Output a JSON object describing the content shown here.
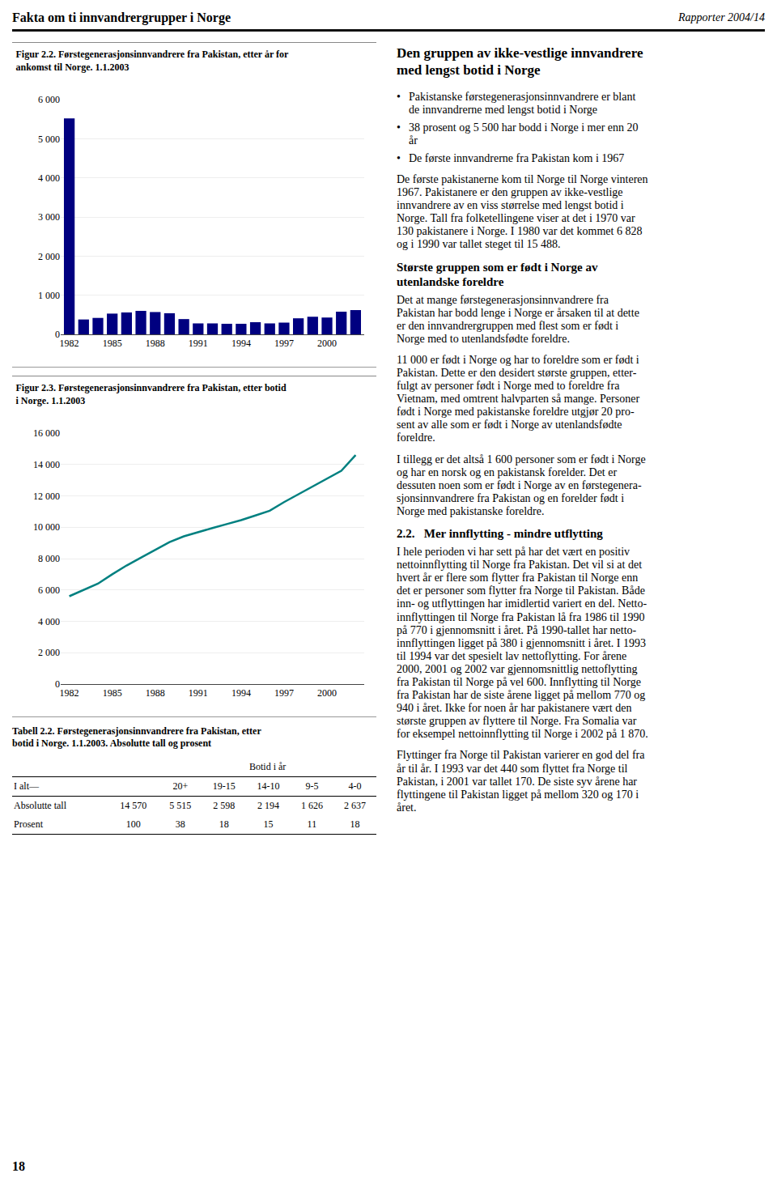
{
  "title": "Fakta om ti innvandrergrupper i Norge",
  "subtitle": "Rapporter 2004/14",
  "chart_data": [
    {
      "type": "bar",
      "title": "Figur 2.2. Førstegenerasjonsinnvandrere fra Pakistan, etter år for\nankomst til Norge. 1.1.2003",
      "x": [
        1982,
        1983,
        1984,
        1985,
        1986,
        1987,
        1988,
        1989,
        1990,
        1991,
        1992,
        1993,
        1994,
        1995,
        1996,
        1997,
        1998,
        1999,
        2000,
        2001,
        2002
      ],
      "values": [
        5520,
        380,
        420,
        530,
        560,
        600,
        570,
        540,
        390,
        280,
        280,
        270,
        270,
        310,
        280,
        300,
        410,
        450,
        430,
        580,
        620
      ],
      "color": "#000080",
      "xlim": [
        1981.4,
        2002.6
      ],
      "xticks": [
        1982,
        1985,
        1988,
        1991,
        1994,
        1997,
        2000
      ],
      "ylim": [
        0,
        6000
      ],
      "yticks": [
        0,
        {
          "value": 1000,
          "label": "1 000"
        },
        {
          "value": 2000,
          "label": "2 000"
        },
        {
          "value": 3000,
          "label": "3 000"
        },
        {
          "value": 4000,
          "label": "4 000"
        },
        {
          "value": 5000,
          "label": "5 000"
        },
        {
          "value": 6000,
          "label": "6 000"
        }
      ],
      "grid": true
    },
    {
      "type": "line",
      "title": "Figur 2.3. Førstegenerasjonsinnvandrere fra Pakistan, etter botid\ni Norge. 1.1.2003",
      "x": [
        1982,
        1983,
        1984,
        1985,
        1986,
        1987,
        1988,
        1989,
        1990,
        1991,
        1992,
        1993,
        1994,
        1995,
        1996,
        1997,
        1998,
        1999,
        2000,
        2001,
        2002
      ],
      "values": [
        5600,
        5980,
        6400,
        7000,
        7560,
        8060,
        8560,
        9050,
        9420,
        9700,
        9950,
        10200,
        10450,
        10750,
        11050,
        11600,
        12100,
        12600,
        13100,
        13600,
        14600
      ],
      "color": "#008080",
      "xlim": [
        1981.4,
        2002.6
      ],
      "xticks": [
        1982,
        1985,
        1988,
        1991,
        1994,
        1997,
        2000
      ],
      "ylim": [
        0,
        16000
      ],
      "yticks": [
        0,
        {
          "value": 2000,
          "label": "2 000"
        },
        {
          "value": 4000,
          "label": "4 000"
        },
        {
          "value": 6000,
          "label": "6 000"
        },
        {
          "value": 8000,
          "label": "8 000"
        },
        {
          "value": 10000,
          "label": "10 000"
        },
        {
          "value": 12000,
          "label": "12 000"
        },
        {
          "value": 14000,
          "label": "14 000"
        },
        {
          "value": 16000,
          "label": "16 000"
        }
      ],
      "grid": true
    }
  ],
  "table": {
    "title": "Tabell 2.2. Førstegenerasjonsinnvandrere fra Pakistan, etter\nbotid i Norge. 1.1.2003. Absolutte tall og prosent",
    "group": "Botid i år",
    "corner": "I alt—",
    "columns": [
      "20+",
      "19-15",
      "14-10",
      "9-5",
      "4-0"
    ],
    "rows": [
      {
        "name": "Absolutte tall",
        "values": [
          "14 570",
          "5 515",
          "2 598",
          "2 194",
          "1 626",
          "2 637"
        ]
      },
      {
        "name": "Prosent",
        "values": [
          "100",
          "38",
          "18",
          "15",
          "11",
          "18"
        ]
      }
    ]
  },
  "annotations": [
    {
      "type": "title",
      "text": "Den gruppen av ikke-vestlige innvandrere\nmed lengst botid i Norge"
    },
    {
      "type": "bullet",
      "text": "Pakistanske førstegenerasjonsinnvandrere er blant\nde innvandrerne med lengst botid i Norge"
    },
    {
      "type": "bullet",
      "text": "38 prosent og 5 500 har bodd i Norge i mer enn 20\når"
    },
    {
      "type": "bullet",
      "text": "De første innvandrerne fra Pakistan kom i 1967"
    },
    {
      "type": "paragraph",
      "text": "De første pakistanerne kom til Norge til Norge vinteren\n1967. Pakistanere er den gruppen av ikke-vestlige\ninnvandrere av en viss størrelse med lengst botid i\nNorge. Tall fra folketellingene viser at det i 1970 var\n130 pakistanere i Norge. I 1980 var det kommet 6 828\nog i 1990 var tallet steget til 15 488."
    },
    {
      "type": "heading",
      "text": "Største gruppen som er født i Norge av\nutenlandske foreldre"
    },
    {
      "type": "paragraph",
      "text": "Det at mange førstegenerasjonsinnvandrere fra\nPakistan har bodd lenge i Norge er årsaken til at dette\ner den innvandrergruppen med flest som er født i\nNorge med to utenlandsfødte foreldre."
    },
    {
      "type": "paragraph",
      "text": "11 000 er født i Norge og har to foreldre som er født i\nPakistan. Dette er den desidert største gruppen, etter-\nfulgt av personer født i Norge med to foreldre fra\nVietnam, med omtrent halvparten så mange. Personer\nfødt i Norge med pakistanske foreldre utgjør 20 pro-\nsent av alle som er født i Norge av utenlandsfødte\nforeldre."
    },
    {
      "type": "paragraph",
      "text": "I tillegg er det altså 1 600 personer som er født i Norge\nog har en norsk og en pakistansk forelder. Det er\ndessuten noen som er født i Norge av en førstegenera-\nsjonsinnvandrere fra Pakistan og en forelder født i\nNorge med pakistanske foreldre."
    },
    {
      "type": "heading",
      "text": "2.2.   Mer innflytting - mindre utflytting"
    },
    {
      "type": "paragraph",
      "text": "I hele perioden vi har sett på har det vært en positiv\nnettoinnflytting til Norge fra Pakistan. Det vil si at det\nhvert år er flere som flytter fra Pakistan til Norge enn\ndet er personer som flytter fra Norge til Pakistan. Både\ninn- og utflyttingen har imidlertid variert en del. Netto-\ninnflyttingen til Norge fra Pakistan lå fra 1986 til 1990\npå 770 i gjennomsnitt i året. På 1990-tallet har netto-\ninnflyttingen ligget på 380 i gjennomsnitt i året. I 1993\ntil 1994 var det spesielt lav nettoflytting. For årene\n2000, 2001 og 2002 var gjennomsnittlig nettoflytting\nfra Pakistan til Norge på vel 600. Innflytting til Norge\nfra Pakistan har de siste årene ligget på mellom 770 og\n940 i året. Ikke for noen år har pakistanere vært den\nstørste gruppen av flyttere til Norge. Fra Somalia var\nfor eksempel nettoinnflytting til Norge i 2002 på 1 870."
    },
    {
      "type": "paragraph",
      "text": "Flyttinger fra Norge til Pakistan varierer en god del fra\når til år. I 1993 var det 440 som flyttet fra Norge til\nPakistan, i 2001 var tallet 170. De siste syv årene har\nflyttingene til Pakistan ligget på mellom 320 og 170 i\nåret."
    }
  ],
  "footer": "18"
}
